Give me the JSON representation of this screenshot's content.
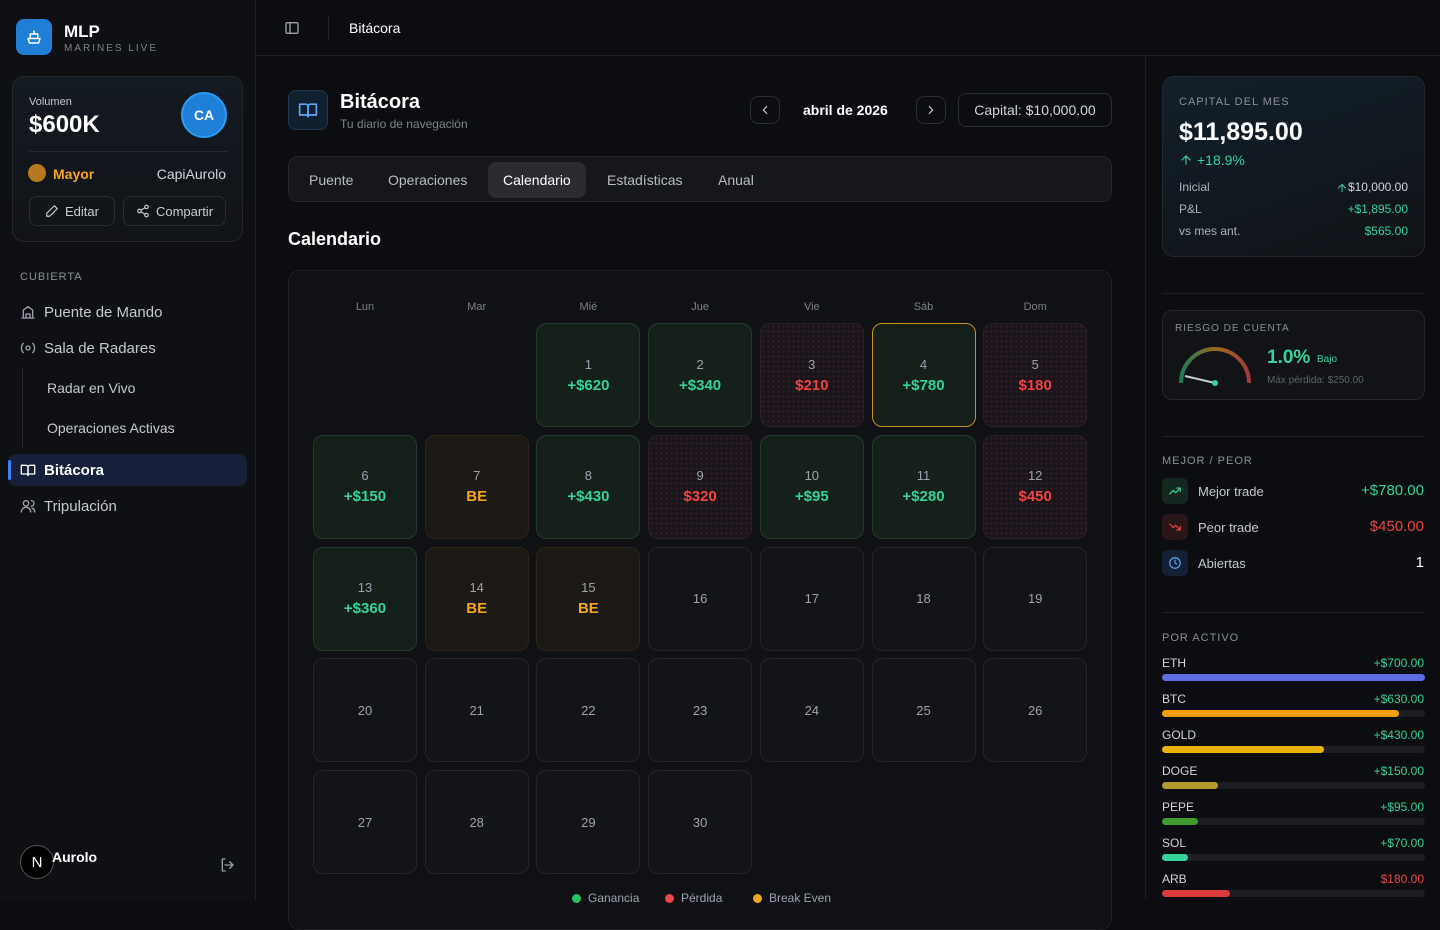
{
  "brand": {
    "name": "MLP",
    "tagline": "MARINES LIVE"
  },
  "profile": {
    "volume_label": "Volumen",
    "volume": "$600K",
    "avatar": "CA",
    "rank": "Mayor",
    "user": "CapiAurolo",
    "edit": "Editar",
    "share": "Compartir"
  },
  "nav": {
    "section": "CUBIERTA",
    "items": [
      {
        "label": "Puente de Mando",
        "level": 0
      },
      {
        "label": "Sala de Radares",
        "level": 0
      },
      {
        "label": "Radar en Vivo",
        "level": 1
      },
      {
        "label": "Operaciones Activas",
        "level": 1
      },
      {
        "label": "Bitácora",
        "level": 0,
        "active": true
      },
      {
        "label": "Tripulación",
        "level": 0
      }
    ]
  },
  "footer_user": {
    "avatar": "N",
    "name": "Aurolo"
  },
  "topbar": {
    "breadcrumb": "Bitácora"
  },
  "header": {
    "title": "Bitácora",
    "subtitle": "Tu diario de navegación",
    "month": "abril de 2026",
    "capital": "Capital: $10,000.00"
  },
  "tabs": {
    "items": [
      "Puente",
      "Operaciones",
      "Calendario",
      "Estadísticas",
      "Anual"
    ],
    "active": 2
  },
  "calendar": {
    "title": "Calendario",
    "weekdays": [
      "Lun",
      "Mar",
      "Mié",
      "Jue",
      "Vie",
      "Sáb",
      "Dom"
    ],
    "today": 4,
    "cells": [
      null,
      null,
      {
        "day": 1,
        "result": "+$620",
        "status": "win"
      },
      {
        "day": 2,
        "result": "+$340",
        "status": "win"
      },
      {
        "day": 3,
        "result": "$210",
        "status": "loss"
      },
      {
        "day": 4,
        "result": "+$780",
        "status": "win"
      },
      {
        "day": 5,
        "result": "$180",
        "status": "loss"
      },
      {
        "day": 6,
        "result": "+$150",
        "status": "win"
      },
      {
        "day": 7,
        "result": "BE",
        "status": "be"
      },
      {
        "day": 8,
        "result": "+$430",
        "status": "win"
      },
      {
        "day": 9,
        "result": "$320",
        "status": "loss"
      },
      {
        "day": 10,
        "result": "+$95",
        "status": "win"
      },
      {
        "day": 11,
        "result": "+$280",
        "status": "win"
      },
      {
        "day": 12,
        "result": "$450",
        "status": "loss"
      },
      {
        "day": 13,
        "result": "+$360",
        "status": "win"
      },
      {
        "day": 14,
        "result": "BE",
        "status": "be"
      },
      {
        "day": 15,
        "result": "BE",
        "status": "be"
      },
      {
        "day": 16
      },
      {
        "day": 17
      },
      {
        "day": 18
      },
      {
        "day": 19
      },
      {
        "day": 20
      },
      {
        "day": 21
      },
      {
        "day": 22
      },
      {
        "day": 23
      },
      {
        "day": 24
      },
      {
        "day": 25
      },
      {
        "day": 26
      },
      {
        "day": 27
      },
      {
        "day": 28
      },
      {
        "day": 29
      },
      {
        "day": 30
      }
    ],
    "legend": [
      {
        "label": "Ganancia",
        "color": "#22c55e"
      },
      {
        "label": "Pérdida",
        "color": "#ef4444"
      },
      {
        "label": "Break Even",
        "color": "#f5a524"
      }
    ]
  },
  "capital_panel": {
    "label": "CAPITAL DEL MES",
    "value": "$11,895.00",
    "change": "+18.9%",
    "rows": [
      {
        "label": "Inicial",
        "value": "$10,000.00",
        "tone": "plain"
      },
      {
        "label": "P&L",
        "value": "+$1,895.00",
        "tone": "up"
      },
      {
        "label": "vs mes ant.",
        "value": "$565.00",
        "tone": "up"
      }
    ]
  },
  "risk": {
    "label": "RIESGO DE CUENTA",
    "value": "1.0%",
    "level": "Bajo",
    "max": "Máx pérdida: $250.00"
  },
  "best_worst": {
    "label": "MEJOR / PEOR",
    "rows": [
      {
        "label": "Mejor trade",
        "value": "+$780.00",
        "tone": "up"
      },
      {
        "label": "Peor trade",
        "value": "$450.00",
        "tone": "down"
      },
      {
        "label": "Abiertas",
        "value": "1",
        "tone": "plain"
      }
    ]
  },
  "by_asset": {
    "label": "POR ACTIVO",
    "xlim": [
      0,
      700
    ],
    "items": [
      {
        "name": "ETH",
        "value": 700,
        "value_label": "+$700.00",
        "color": "#5b6ee1",
        "tone": "up"
      },
      {
        "name": "BTC",
        "value": 630,
        "value_label": "+$630.00",
        "color": "#f59e0b",
        "tone": "up"
      },
      {
        "name": "GOLD",
        "value": 430,
        "value_label": "+$430.00",
        "color": "#eab308",
        "tone": "up"
      },
      {
        "name": "DOGE",
        "value": 150,
        "value_label": "+$150.00",
        "color": "#b59a2e",
        "tone": "up"
      },
      {
        "name": "PEPE",
        "value": 95,
        "value_label": "+$95.00",
        "color": "#3f9b2f",
        "tone": "up"
      },
      {
        "name": "SOL",
        "value": 70,
        "value_label": "+$70.00",
        "color": "#34d399",
        "tone": "up"
      },
      {
        "name": "ARB",
        "value": 180,
        "value_label": "$180.00",
        "color": "#dc3c3c",
        "tone": "down"
      }
    ]
  }
}
